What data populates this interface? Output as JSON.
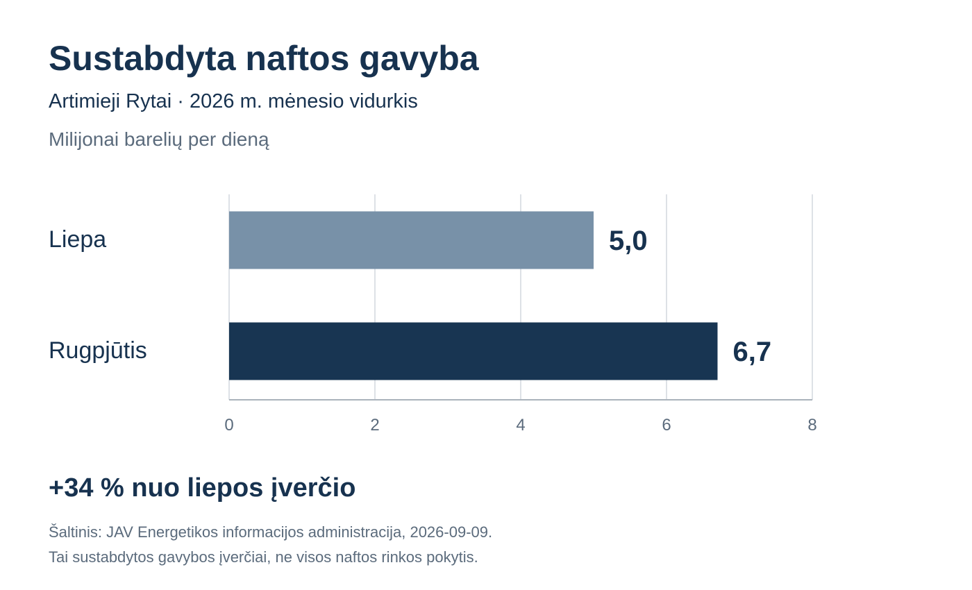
{
  "header": {
    "title": "Sustabdyta naftos gavyba",
    "subtitle": "Artimieji Rytai · 2026 m. mėnesio vidurkis",
    "unit": "Milijonai barelių per dieną"
  },
  "chart_data": {
    "type": "bar",
    "orientation": "horizontal",
    "title": "Sustabdyta naftos gavyba",
    "subtitle": "Artimieji Rytai · 2026 m. mėnesio vidurkis",
    "xlabel": "",
    "ylabel": "Milijonai barelių per dieną",
    "categories": [
      "Liepa",
      "Rugpjūtis"
    ],
    "values": [
      5.0,
      6.7
    ],
    "value_labels": [
      "5,0",
      "6,7"
    ],
    "bar_colors": [
      "#7891a8",
      "#183552"
    ],
    "xlim": [
      0,
      8
    ],
    "ticks": [
      0,
      2,
      4,
      6,
      8
    ],
    "tick_labels": [
      "0",
      "2",
      "4",
      "6",
      "8"
    ],
    "grid": true,
    "legend": "none"
  },
  "footer": {
    "callout": "+34 % nuo liepos įverčio",
    "source": "Šaltinis: JAV Energetikos informacijos administracija, 2026-09-09.",
    "note": "Tai sustabdytos gavybos įverčiai, ne visos naftos rinkos pokytis."
  },
  "colors": {
    "title": "#17324f",
    "muted": "#5b6b7c",
    "grid": "#dde1e6",
    "axis": "#aab2bb"
  }
}
